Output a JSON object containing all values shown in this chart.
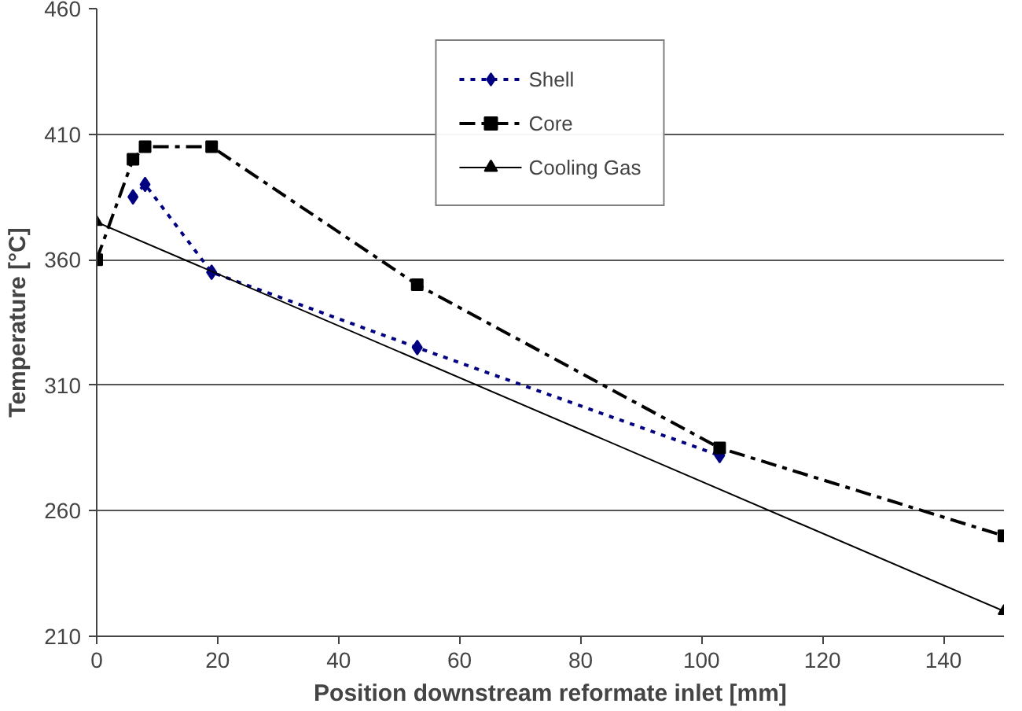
{
  "chart_data": {
    "type": "line",
    "xlabel": "Position downstream reformate inlet [mm]",
    "ylabel": "Temperature [°C]",
    "xlim": [
      0,
      150
    ],
    "xticks": [
      0,
      20,
      40,
      60,
      80,
      100,
      120,
      140
    ],
    "ylim": [
      210,
      460
    ],
    "yticks": [
      210,
      260,
      310,
      360,
      410,
      460
    ],
    "grid": "y",
    "legend": "top",
    "series": [
      {
        "name": "Shell",
        "color": "#000080",
        "x": [
          6,
          8,
          19,
          53,
          103
        ],
        "values": [
          385,
          390,
          355,
          325,
          282
        ],
        "marker": "diamond",
        "line_style": "dotted"
      },
      {
        "name": "Core",
        "color": "#000000",
        "x": [
          0,
          6,
          8,
          19,
          53,
          103,
          150
        ],
        "values": [
          360,
          400,
          405,
          405,
          350,
          285,
          250
        ],
        "marker": "square",
        "line_style": "dashdot"
      },
      {
        "name": "Cooling Gas",
        "color": "#000000",
        "x": [
          0,
          150
        ],
        "values": [
          375,
          220
        ],
        "marker": "triangle",
        "line_style": "solid"
      }
    ]
  }
}
